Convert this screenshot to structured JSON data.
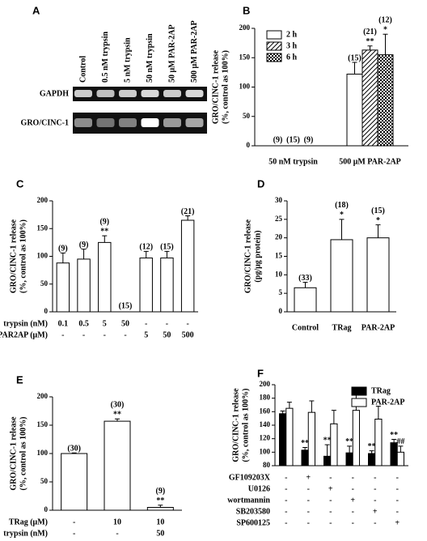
{
  "gel": {
    "panel": "A",
    "lanes": [
      "Control",
      "0.5 nM trypsin",
      "5 nM trypsin",
      "50 nM trypsin",
      "50 μM PAR-2AP",
      "500 μM PAR-2AP"
    ],
    "rows": [
      "GAPDH",
      "GRO/CINC-1"
    ]
  },
  "chart_data": [
    {
      "panel": "B",
      "type": "bar",
      "ylabel": [
        "GRO/CINC-1 release",
        "(%, control as 100%)"
      ],
      "categories": [
        "50 nM trypsin",
        "500 μM PAR-2AP"
      ],
      "ylim": [
        0,
        200
      ],
      "yticks": [
        0,
        50,
        100,
        150,
        200
      ],
      "legend": "upper left",
      "series": [
        {
          "name": "2 h",
          "color": "#ffffff",
          "pattern": "none",
          "values": [
            0,
            122
          ],
          "errors": [
            0,
            20
          ],
          "n_labels": [
            "(9)",
            "(15)"
          ],
          "sig_labels": [
            null,
            null
          ]
        },
        {
          "name": "3 h",
          "color": "#ffffff",
          "pattern": "diagonal",
          "values": [
            0,
            163
          ],
          "errors": [
            0,
            7
          ],
          "n_labels": [
            "(15)",
            "(21)"
          ],
          "sig_labels": [
            null,
            "**"
          ]
        },
        {
          "name": "6 h",
          "color": "#ffffff",
          "pattern": "dots",
          "values": [
            0,
            155
          ],
          "errors": [
            0,
            35
          ],
          "n_labels": [
            "(9)",
            "(12)"
          ],
          "sig_labels": [
            null,
            "*"
          ]
        }
      ]
    },
    {
      "panel": "C",
      "type": "bar",
      "ylabel": [
        "GRO/CINC-1 release",
        "(%, control as 100%)"
      ],
      "ylim": [
        0,
        200
      ],
      "yticks": [
        0,
        50,
        100,
        150,
        200
      ],
      "color": "#ffffff",
      "values": [
        88,
        95,
        125,
        0,
        97,
        97,
        165
      ],
      "errors": [
        18,
        18,
        12,
        0,
        12,
        12,
        8
      ],
      "n_labels": [
        "(9)",
        "(9)",
        "(9)",
        "(15)",
        "(12)",
        "(15)",
        "(21)"
      ],
      "sig_labels": [
        null,
        null,
        "**",
        null,
        null,
        null,
        null
      ],
      "conditions": [
        {
          "name": "trypsin (nM)",
          "labels": [
            "0.1",
            "0.5",
            "5",
            "50",
            "-",
            "-",
            "-"
          ]
        },
        {
          "name": "PAR2AP (μM)",
          "labels": [
            "-",
            "-",
            "-",
            "-",
            "5",
            "50",
            "500"
          ]
        }
      ]
    },
    {
      "panel": "D",
      "type": "bar",
      "ylabel": [
        "GRO/CINC-1 release",
        "(pg/μg protein)"
      ],
      "ylim": [
        0,
        30
      ],
      "yticks": [
        0,
        5,
        10,
        15,
        20,
        25,
        30
      ],
      "color": "#ffffff",
      "categories": [
        "Control",
        "TRag",
        "PAR-2AP"
      ],
      "values": [
        6.5,
        19.5,
        20
      ],
      "errors": [
        1.5,
        5.5,
        3.5
      ],
      "n_labels": [
        "(33)",
        "(18)",
        "(15)"
      ],
      "sig_labels": [
        null,
        "*",
        "*"
      ]
    },
    {
      "panel": "E",
      "type": "bar",
      "ylabel": [
        "GRO/CINC-1 release",
        "(%, control as 100%)"
      ],
      "ylim": [
        0,
        200
      ],
      "yticks": [
        0,
        50,
        100,
        150,
        200
      ],
      "color": "#ffffff",
      "values": [
        100,
        157,
        5
      ],
      "errors": [
        1,
        4,
        4
      ],
      "n_labels": [
        "(30)",
        "(30)",
        "(9)"
      ],
      "sig_labels": [
        null,
        "**",
        "**"
      ],
      "conditions": [
        {
          "name": "TRag (μM)",
          "labels": [
            "-",
            "10",
            "10"
          ]
        },
        {
          "name": "trypsin (nM)",
          "labels": [
            "-",
            "-",
            "50"
          ]
        }
      ]
    },
    {
      "panel": "F",
      "type": "bar",
      "ylabel": [
        "GRO/CINC-1 release",
        "(%, control as 100%)"
      ],
      "ylim": [
        80,
        200
      ],
      "yticks": [
        80,
        100,
        120,
        140,
        160,
        180,
        200
      ],
      "legend": "upper right",
      "series": [
        {
          "name": "TRag",
          "color": "#000000",
          "pattern": "none",
          "values": [
            157,
            103,
            94,
            99,
            98,
            114
          ],
          "errors": [
            4,
            4,
            17,
            10,
            4,
            5
          ],
          "sig_labels": [
            null,
            "**",
            "**",
            "**",
            "**",
            "**"
          ]
        },
        {
          "name": "PAR-2AP",
          "color": "#ffffff",
          "pattern": "none",
          "values": [
            165,
            159,
            142,
            162,
            149,
            100
          ],
          "errors": [
            9,
            17,
            20,
            32,
            19,
            9
          ],
          "sig_labels": [
            null,
            null,
            null,
            null,
            null,
            "##"
          ]
        }
      ],
      "conditions": [
        {
          "name": "GF109203X",
          "labels": [
            "-",
            "+",
            "-",
            "-",
            "-",
            "-"
          ]
        },
        {
          "name": "U0126",
          "labels": [
            "-",
            "-",
            "+",
            "-",
            "-",
            "-"
          ]
        },
        {
          "name": "wortmannin",
          "labels": [
            "-",
            "-",
            "-",
            "+",
            "-",
            "-"
          ]
        },
        {
          "name": "SB203580",
          "labels": [
            "-",
            "-",
            "-",
            "-",
            "+",
            "-"
          ]
        },
        {
          "name": "SP600125",
          "labels": [
            "-",
            "-",
            "-",
            "-",
            "-",
            "+"
          ]
        }
      ]
    }
  ]
}
